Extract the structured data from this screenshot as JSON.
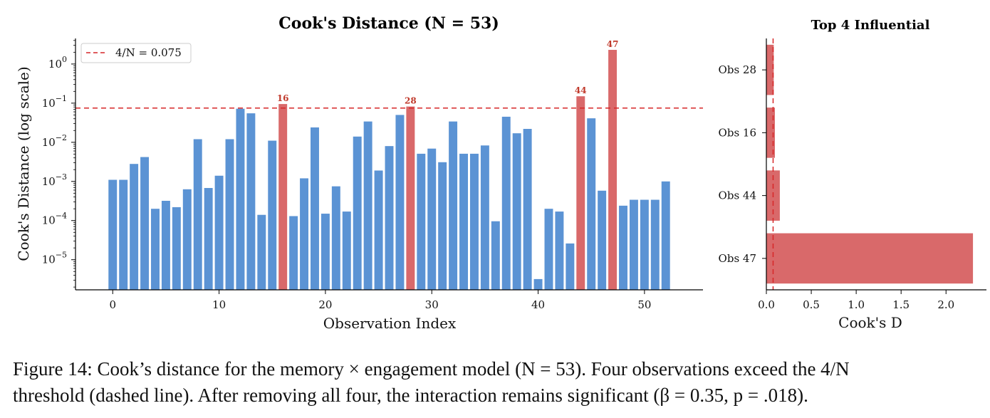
{
  "figure_caption": {
    "line1": "Figure 14: Cook’s distance for the memory × engagement model (N = 53). Four observations exceed the 4/N",
    "line2": "threshold (dashed line). After removing all four, the interaction remains significant (β = 0.35, p = .018)."
  },
  "colors": {
    "normal_bar": "#5b93d4",
    "influential_bar": "#d9696a",
    "threshold_line": "#d62728",
    "label_text": "#c0392b"
  },
  "chart_data": [
    {
      "type": "bar",
      "title": "Cook's Distance (N = 53)",
      "xlabel": "Observation Index",
      "ylabel": "Cook's Distance (log scale)",
      "y_scale": "log",
      "xlim": [
        -3.5,
        55.5
      ],
      "ylim": [
        1.7e-06,
        4.5
      ],
      "x_ticks": [
        "0",
        "10",
        "20",
        "30",
        "40",
        "50"
      ],
      "y_ticks": [
        "10^0",
        "10^-1",
        "10^-2",
        "10^-3",
        "10^-4",
        "10^-5"
      ],
      "threshold": {
        "label": "4/N = 0.075",
        "value": 0.075,
        "style": "dashed"
      },
      "legend_position": "top-left",
      "highlighted_indices": [
        16,
        28,
        44,
        47
      ],
      "bar_annotations": [
        "16",
        "28",
        "44",
        "47"
      ],
      "x": [
        0,
        1,
        2,
        3,
        4,
        5,
        6,
        7,
        8,
        9,
        10,
        11,
        12,
        13,
        14,
        15,
        16,
        17,
        18,
        19,
        20,
        21,
        22,
        23,
        24,
        25,
        26,
        27,
        28,
        29,
        30,
        31,
        32,
        33,
        34,
        35,
        36,
        37,
        38,
        39,
        40,
        41,
        42,
        43,
        44,
        45,
        46,
        47,
        48,
        49,
        50,
        51,
        52
      ],
      "values": [
        0.0011,
        0.0011,
        0.0028,
        0.0042,
        0.0002,
        0.00032,
        0.00022,
        0.00063,
        0.012,
        0.00068,
        0.0014,
        0.012,
        0.072,
        0.055,
        0.00014,
        0.011,
        0.095,
        0.00013,
        0.0012,
        0.024,
        0.00015,
        0.00075,
        0.00017,
        0.014,
        0.034,
        0.0019,
        0.008,
        0.05,
        0.082,
        0.0051,
        0.0069,
        0.0031,
        0.034,
        0.0051,
        0.0051,
        0.0083,
        9.6e-05,
        0.045,
        0.017,
        0.022,
        3.2e-06,
        0.0002,
        0.00017,
        2.6e-05,
        0.15,
        0.041,
        0.00058,
        2.3,
        0.00024,
        0.00034,
        0.00034,
        0.00034,
        0.001
      ]
    },
    {
      "type": "bar",
      "orientation": "horizontal",
      "title": "Top 4 Influential",
      "xlabel": "Cook's D",
      "xlim": [
        0,
        2.45
      ],
      "x_ticks": [
        "0.0",
        "0.5",
        "1.0",
        "1.5",
        "2.0"
      ],
      "categories": [
        "Obs 28",
        "Obs 16",
        "Obs 44",
        "Obs 47"
      ],
      "values": [
        0.082,
        0.095,
        0.15,
        2.3
      ],
      "threshold": {
        "value": 0.075,
        "style": "dashed"
      }
    }
  ]
}
